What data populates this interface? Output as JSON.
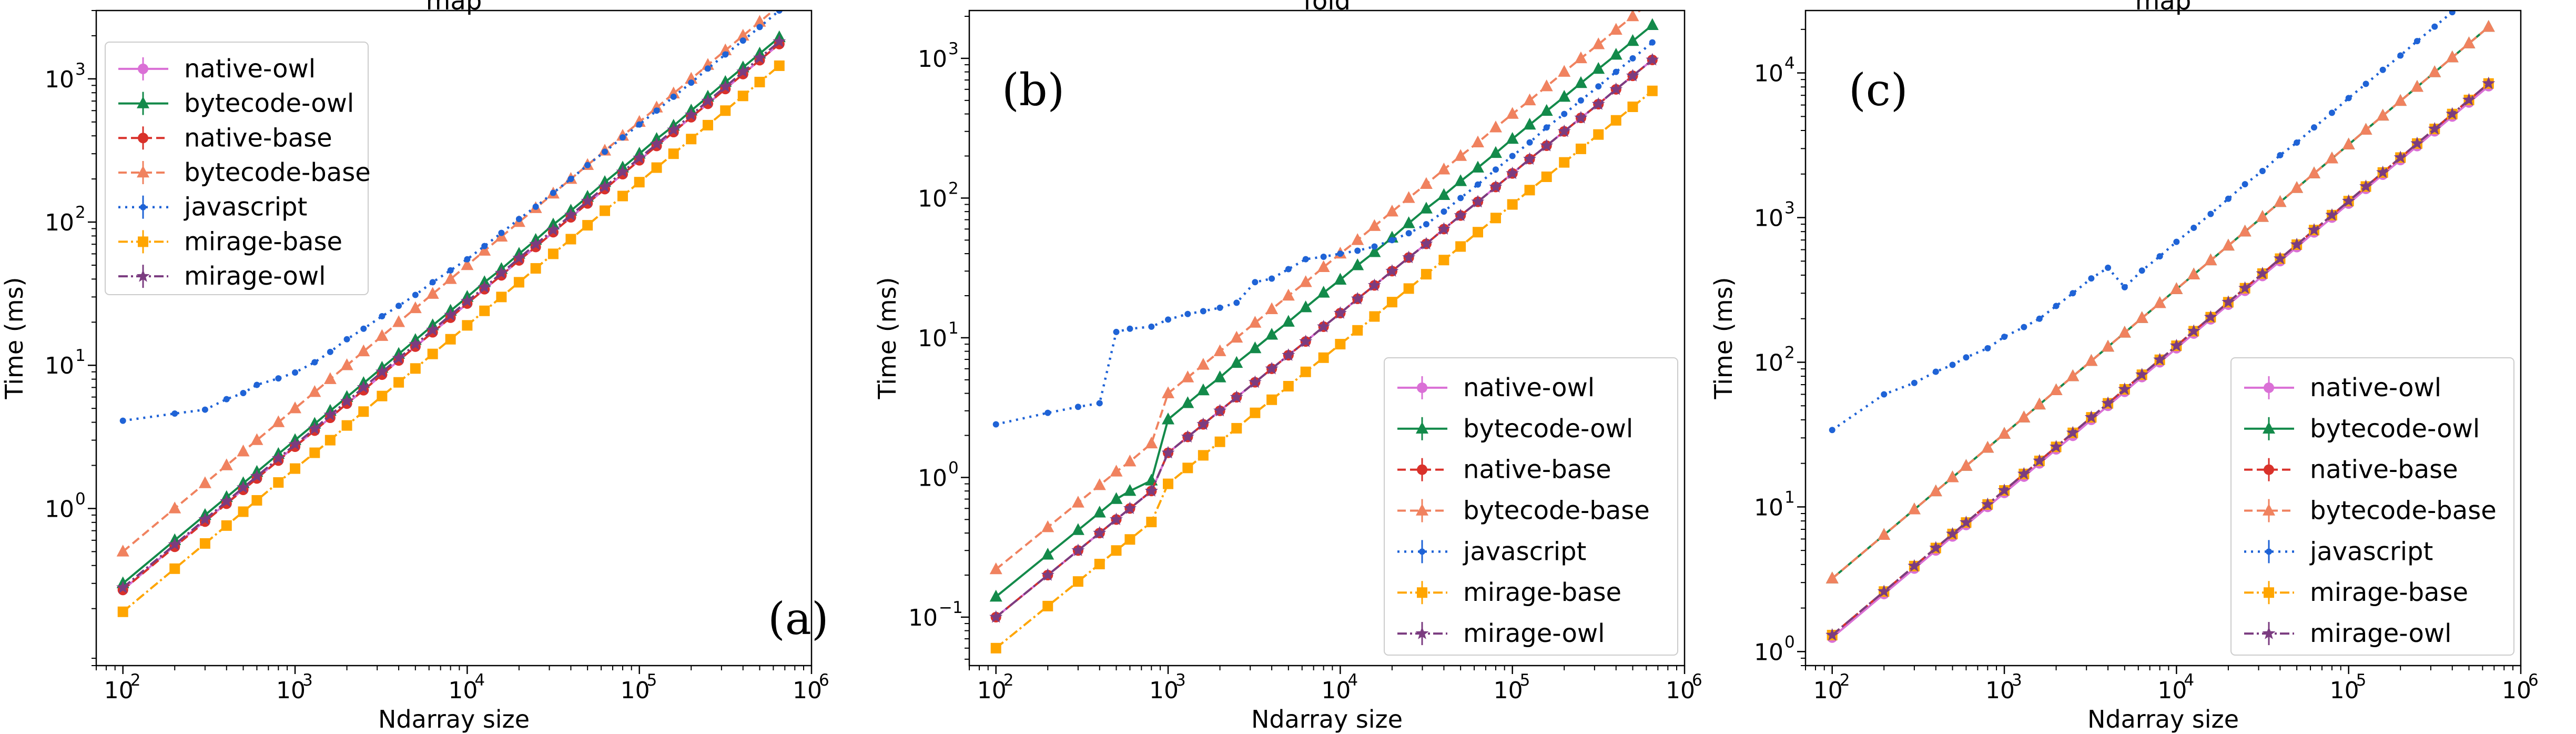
{
  "figure": {
    "style": {
      "colors": {
        "native-owl": "#da70d6",
        "bytecode-owl": "#138a4a",
        "native-base": "#d9312a",
        "bytecode-base": "#f0825f",
        "javascript": "#1f63d6",
        "mirage-base": "#ffa500",
        "mirage-owl": "#7b3c80"
      }
    }
  },
  "chart_data": [
    {
      "type": "line",
      "title": "map",
      "panel_label": "(a)",
      "xlabel": "Ndarray size",
      "ylabel": "Time (ms)",
      "xscale": "log",
      "yscale": "log",
      "xlim": [
        70,
        1000000
      ],
      "ylim": [
        0.08,
        3000
      ],
      "x_ticks": [
        {
          "base": "10",
          "exp": "2"
        },
        {
          "base": "10",
          "exp": "3"
        },
        {
          "base": "10",
          "exp": "4"
        },
        {
          "base": "10",
          "exp": "5"
        },
        {
          "base": "10",
          "exp": "6"
        }
      ],
      "y_ticks": [
        {
          "base": "10",
          "exp": "0"
        },
        {
          "base": "10",
          "exp": "1"
        },
        {
          "base": "10",
          "exp": "2"
        },
        {
          "base": "10",
          "exp": "3"
        }
      ],
      "legend_location": "upper left",
      "x": [
        100,
        200,
        300,
        400,
        500,
        600,
        800,
        1000,
        1300,
        1600,
        2000,
        2500,
        3200,
        4000,
        5000,
        6300,
        8000,
        10000,
        12600,
        15800,
        20000,
        25000,
        31600,
        40000,
        50000,
        63000,
        80000,
        100000,
        126000,
        158000,
        200000,
        250000,
        316000,
        400000,
        500000,
        650000
      ],
      "series": [
        {
          "name": "native-owl",
          "values": [
            0.27,
            0.55,
            0.82,
            1.09,
            1.36,
            1.63,
            2.18,
            2.72,
            3.5,
            4.3,
            5.4,
            6.7,
            8.6,
            10.8,
            13.5,
            17,
            21.5,
            27,
            34,
            42.5,
            54,
            67,
            85,
            108,
            135,
            170,
            216,
            270,
            340,
            425,
            540,
            670,
            850,
            1080,
            1350,
            1750
          ]
        },
        {
          "name": "bytecode-owl",
          "values": [
            0.3,
            0.6,
            0.9,
            1.2,
            1.5,
            1.8,
            2.4,
            3.0,
            3.9,
            4.8,
            6.0,
            7.5,
            9.6,
            12,
            15,
            19,
            24,
            30,
            38,
            47,
            60,
            75,
            96,
            120,
            150,
            190,
            240,
            300,
            380,
            470,
            600,
            750,
            950,
            1200,
            1500,
            1950
          ]
        },
        {
          "name": "native-base",
          "values": [
            0.27,
            0.54,
            0.81,
            1.08,
            1.35,
            1.62,
            2.16,
            2.7,
            3.5,
            4.3,
            5.4,
            6.7,
            8.6,
            10.8,
            13.5,
            17,
            21.5,
            27,
            34,
            42.5,
            54,
            67,
            85,
            108,
            135,
            170,
            216,
            270,
            340,
            425,
            540,
            670,
            850,
            1080,
            1350,
            1750
          ]
        },
        {
          "name": "bytecode-base",
          "values": [
            0.5,
            1.0,
            1.5,
            2.0,
            2.5,
            3.0,
            4.0,
            5.0,
            6.5,
            8.0,
            10,
            12.5,
            16,
            20,
            25,
            31.5,
            40,
            50,
            63,
            79,
            100,
            125,
            158,
            200,
            250,
            315,
            400,
            500,
            630,
            790,
            1000,
            1250,
            1580,
            2000,
            2500,
            3250
          ]
        },
        {
          "name": "javascript",
          "values": [
            4.1,
            4.6,
            4.9,
            5.8,
            6.4,
            7.3,
            8.1,
            8.9,
            10.5,
            12.4,
            15.2,
            18,
            22,
            26,
            31,
            38,
            46,
            55,
            68,
            84,
            105,
            128,
            160,
            200,
            250,
            310,
            390,
            480,
            600,
            750,
            940,
            1180,
            1480,
            1850,
            2300,
            3000
          ]
        },
        {
          "name": "mirage-base",
          "values": [
            0.19,
            0.38,
            0.57,
            0.76,
            0.95,
            1.14,
            1.52,
            1.9,
            2.45,
            3.0,
            3.8,
            4.75,
            6.1,
            7.6,
            9.5,
            12,
            15.2,
            19,
            24,
            30,
            38,
            47.5,
            60,
            76,
            95,
            120,
            152,
            190,
            240,
            300,
            380,
            475,
            600,
            760,
            950,
            1235
          ]
        },
        {
          "name": "mirage-owl",
          "values": [
            0.28,
            0.56,
            0.84,
            1.12,
            1.4,
            1.68,
            2.24,
            2.8,
            3.6,
            4.5,
            5.6,
            7.0,
            9.0,
            11.2,
            14,
            17.6,
            22.4,
            28,
            35,
            44,
            56,
            70,
            88,
            112,
            140,
            176,
            224,
            280,
            350,
            440,
            560,
            700,
            880,
            1120,
            1400,
            1820
          ]
        }
      ]
    },
    {
      "type": "line",
      "title": "fold",
      "panel_label": "(b)",
      "xlabel": "Ndarray size",
      "ylabel": "Time (ms)",
      "xscale": "log",
      "yscale": "log",
      "xlim": [
        70,
        1000000
      ],
      "ylim": [
        0.045,
        2200
      ],
      "x_ticks": [
        {
          "base": "10",
          "exp": "2"
        },
        {
          "base": "10",
          "exp": "3"
        },
        {
          "base": "10",
          "exp": "4"
        },
        {
          "base": "10",
          "exp": "5"
        },
        {
          "base": "10",
          "exp": "6"
        }
      ],
      "y_ticks": [
        {
          "base": "10",
          "exp": "−1"
        },
        {
          "base": "10",
          "exp": "0"
        },
        {
          "base": "10",
          "exp": "1"
        },
        {
          "base": "10",
          "exp": "2"
        },
        {
          "base": "10",
          "exp": "3"
        }
      ],
      "legend_location": "lower right",
      "x": [
        100,
        200,
        300,
        400,
        500,
        600,
        800,
        1000,
        1300,
        1600,
        2000,
        2500,
        3200,
        4000,
        5000,
        6300,
        8000,
        10000,
        12600,
        15800,
        20000,
        25000,
        31600,
        40000,
        50000,
        63000,
        80000,
        100000,
        126000,
        158000,
        200000,
        250000,
        316000,
        400000,
        500000,
        650000
      ],
      "series": [
        {
          "name": "native-owl",
          "values": [
            0.1,
            0.2,
            0.3,
            0.4,
            0.5,
            0.6,
            0.8,
            1.5,
            1.95,
            2.4,
            3.0,
            3.75,
            4.8,
            6.0,
            7.5,
            9.4,
            12,
            15,
            19,
            23.7,
            30,
            37.5,
            47,
            60,
            75,
            94,
            120,
            150,
            190,
            237,
            300,
            375,
            470,
            600,
            750,
            975
          ]
        },
        {
          "name": "bytecode-owl",
          "values": [
            0.14,
            0.28,
            0.42,
            0.56,
            0.7,
            0.8,
            0.95,
            2.6,
            3.4,
            4.2,
            5.2,
            6.6,
            8.4,
            10.5,
            13,
            16.5,
            21,
            26,
            33,
            41,
            52,
            66,
            84,
            105,
            132,
            165,
            210,
            265,
            335,
            420,
            530,
            665,
            840,
            1060,
            1330,
            1730
          ]
        },
        {
          "name": "native-base",
          "values": [
            0.1,
            0.2,
            0.3,
            0.4,
            0.5,
            0.6,
            0.8,
            1.5,
            1.95,
            2.4,
            3.0,
            3.75,
            4.8,
            6.0,
            7.5,
            9.4,
            12,
            15,
            19,
            23.7,
            30,
            37.5,
            47,
            60,
            75,
            94,
            120,
            150,
            190,
            237,
            300,
            375,
            470,
            600,
            750,
            975
          ]
        },
        {
          "name": "bytecode-base",
          "values": [
            0.22,
            0.44,
            0.66,
            0.88,
            1.1,
            1.3,
            1.75,
            4.0,
            5.2,
            6.4,
            8.0,
            10,
            12.8,
            16,
            20,
            25,
            32,
            40,
            50,
            63,
            80,
            100,
            126,
            160,
            200,
            250,
            320,
            400,
            500,
            630,
            800,
            1000,
            1260,
            1600,
            2000,
            2600
          ]
        },
        {
          "name": "javascript",
          "values": [
            2.4,
            2.9,
            3.2,
            3.4,
            11,
            11.6,
            12,
            13.5,
            14.8,
            15.5,
            16.4,
            17.8,
            25,
            26.5,
            31,
            36.5,
            38,
            40,
            42,
            45,
            50,
            56,
            65,
            80,
            100,
            125,
            160,
            200,
            250,
            320,
            400,
            500,
            630,
            800,
            1000,
            1300
          ]
        },
        {
          "name": "mirage-base",
          "values": [
            0.06,
            0.12,
            0.18,
            0.24,
            0.3,
            0.36,
            0.48,
            0.9,
            1.17,
            1.44,
            1.8,
            2.25,
            2.9,
            3.6,
            4.5,
            5.7,
            7.2,
            9,
            11.3,
            14.2,
            18,
            22.5,
            28.5,
            36,
            45,
            57,
            72,
            90,
            114,
            142,
            180,
            225,
            285,
            360,
            450,
            585
          ]
        },
        {
          "name": "mirage-owl",
          "values": [
            0.1,
            0.2,
            0.3,
            0.4,
            0.5,
            0.6,
            0.8,
            1.5,
            1.95,
            2.4,
            3.0,
            3.75,
            4.8,
            6.0,
            7.5,
            9.4,
            12,
            15,
            19,
            23.7,
            30,
            37.5,
            47,
            60,
            75,
            94,
            120,
            150,
            190,
            237,
            300,
            375,
            470,
            600,
            750,
            975
          ]
        }
      ]
    },
    {
      "type": "line",
      "title": "map",
      "panel_label": "(c)",
      "xlabel": "Ndarray size",
      "ylabel": "Time (ms)",
      "xscale": "log",
      "yscale": "log",
      "xlim": [
        70,
        1000000
      ],
      "ylim": [
        0.8,
        27000
      ],
      "x_ticks": [
        {
          "base": "10",
          "exp": "2"
        },
        {
          "base": "10",
          "exp": "3"
        },
        {
          "base": "10",
          "exp": "4"
        },
        {
          "base": "10",
          "exp": "5"
        },
        {
          "base": "10",
          "exp": "6"
        }
      ],
      "y_ticks": [
        {
          "base": "10",
          "exp": "0"
        },
        {
          "base": "10",
          "exp": "1"
        },
        {
          "base": "10",
          "exp": "2"
        },
        {
          "base": "10",
          "exp": "3"
        },
        {
          "base": "10",
          "exp": "4"
        }
      ],
      "legend_location": "lower right",
      "x": [
        100,
        200,
        300,
        400,
        500,
        600,
        800,
        1000,
        1300,
        1600,
        2000,
        2500,
        3200,
        4000,
        5000,
        6300,
        8000,
        10000,
        12600,
        15800,
        20000,
        25000,
        31600,
        40000,
        50000,
        63000,
        80000,
        100000,
        126000,
        158000,
        200000,
        250000,
        316000,
        400000,
        500000,
        650000
      ],
      "series": [
        {
          "name": "native-owl",
          "values": [
            1.25,
            2.5,
            3.75,
            5.0,
            6.25,
            7.5,
            10,
            12.5,
            16.2,
            20,
            25,
            31,
            40,
            50,
            62.5,
            79,
            100,
            125,
            158,
            198,
            250,
            312,
            395,
            500,
            625,
            790,
            1000,
            1250,
            1580,
            1980,
            2500,
            3120,
            3950,
            5000,
            6250,
            8100
          ]
        },
        {
          "name": "bytecode-owl",
          "values": [
            3.2,
            6.4,
            9.6,
            12.8,
            16,
            19.2,
            25.6,
            32,
            41.5,
            51,
            64,
            80,
            102,
            128,
            160,
            202,
            256,
            320,
            404,
            506,
            640,
            800,
            1010,
            1280,
            1600,
            2020,
            2560,
            3200,
            4040,
            5060,
            6400,
            8000,
            10100,
            12800,
            16000,
            20800
          ]
        },
        {
          "name": "native-base",
          "values": [
            1.3,
            2.6,
            3.9,
            5.2,
            6.5,
            7.8,
            10.4,
            13,
            16.9,
            20.8,
            26,
            32.5,
            41.6,
            52,
            65,
            82,
            104,
            130,
            164,
            205,
            260,
            325,
            410,
            520,
            650,
            820,
            1040,
            1300,
            1640,
            2050,
            2600,
            3250,
            4100,
            5200,
            6500,
            8450
          ]
        },
        {
          "name": "bytecode-base",
          "values": [
            3.2,
            6.4,
            9.6,
            12.8,
            16,
            19.2,
            25.6,
            32,
            41.5,
            51,
            64,
            80,
            102,
            128,
            160,
            202,
            256,
            320,
            404,
            506,
            640,
            800,
            1010,
            1280,
            1600,
            2020,
            2560,
            3200,
            4040,
            5060,
            6400,
            8000,
            10100,
            12800,
            16000,
            20800
          ]
        },
        {
          "name": "javascript",
          "values": [
            34,
            60,
            72,
            86,
            96,
            108,
            125,
            150,
            175,
            200,
            245,
            300,
            380,
            450,
            330,
            430,
            540,
            680,
            850,
            1060,
            1350,
            1700,
            2100,
            2700,
            3300,
            4200,
            5300,
            6700,
            8400,
            10500,
            13200,
            16600,
            20900,
            26300,
            33000,
            43000
          ]
        },
        {
          "name": "mirage-base",
          "values": [
            1.3,
            2.6,
            3.9,
            5.2,
            6.5,
            7.8,
            10.4,
            13,
            16.9,
            20.8,
            26,
            32.5,
            41.6,
            52,
            65,
            82,
            104,
            130,
            164,
            205,
            260,
            325,
            410,
            520,
            650,
            820,
            1040,
            1300,
            1640,
            2050,
            2600,
            3250,
            4100,
            5200,
            6500,
            8450
          ]
        },
        {
          "name": "mirage-owl",
          "values": [
            1.3,
            2.6,
            3.9,
            5.2,
            6.5,
            7.8,
            10.4,
            13,
            16.9,
            20.8,
            26,
            32.5,
            41.6,
            52,
            65,
            82,
            104,
            130,
            164,
            205,
            260,
            325,
            410,
            520,
            650,
            820,
            1040,
            1300,
            1640,
            2050,
            2600,
            3250,
            4100,
            5200,
            6500,
            8450
          ]
        }
      ]
    }
  ]
}
